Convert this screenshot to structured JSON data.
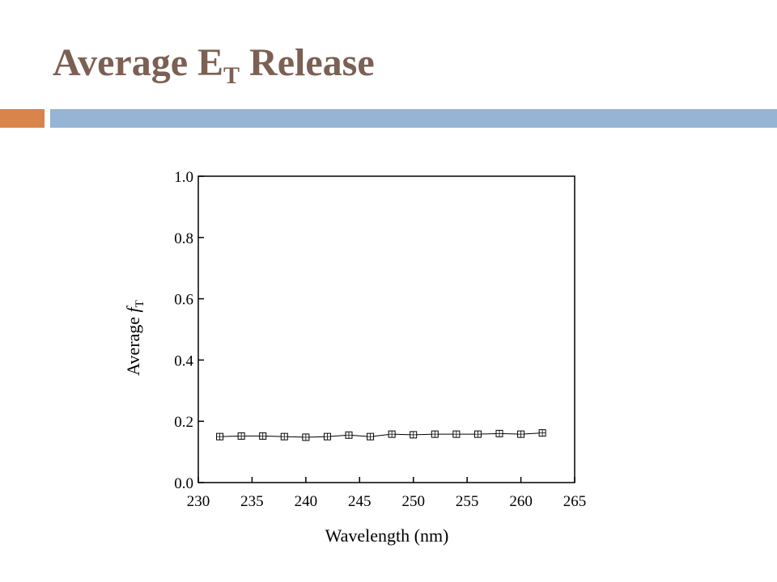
{
  "header": {
    "title": "Average E",
    "title_subscript": "T",
    "title_suffix": "Release"
  },
  "chart_data": {
    "type": "line",
    "x_label": "Wavelength (nm)",
    "y_label": "Average ",
    "y_label_italic": "f",
    "y_label_subscript": "T",
    "x": [
      232,
      234,
      236,
      238,
      240,
      242,
      244,
      246,
      248,
      250,
      252,
      254,
      256,
      258,
      260,
      262
    ],
    "series": [
      {
        "color": "#000000",
        "values": [
          0.15,
          0.152,
          0.152,
          0.15,
          0.148,
          0.15,
          0.155,
          0.15,
          0.158,
          0.156,
          0.158,
          0.158,
          0.158,
          0.16,
          0.158,
          0.162
        ]
      }
    ],
    "xlim": [
      230,
      265
    ],
    "xticks": [
      230,
      235,
      240,
      245,
      250,
      255,
      260,
      265
    ],
    "ylim": [
      0,
      1
    ],
    "yticks": [
      {
        "value": 0,
        "label": "0.0"
      },
      0.2,
      0.4,
      0.6,
      0.8,
      {
        "value": 1,
        "label": "1.0"
      }
    ]
  }
}
